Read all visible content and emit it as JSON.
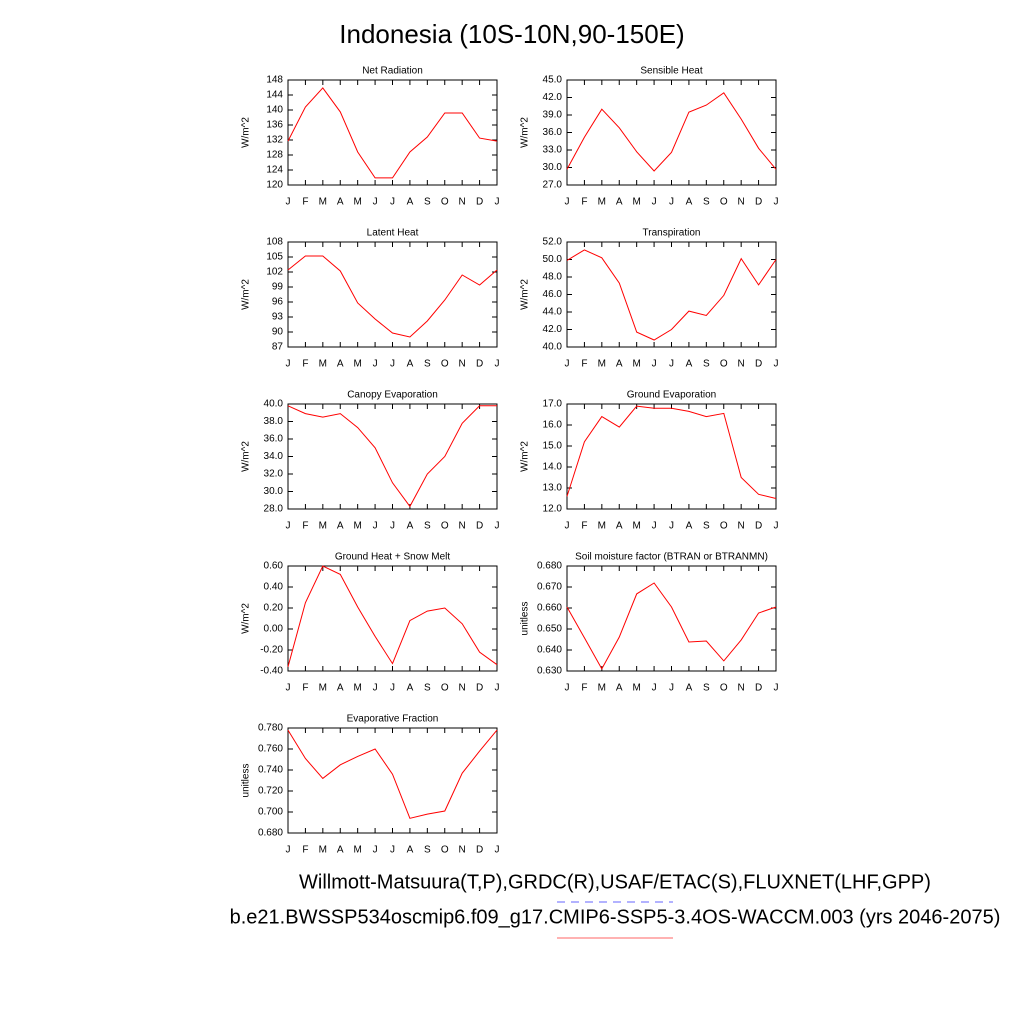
{
  "title": "Indonesia (10S-10N,90-150E)",
  "footer": [
    "Willmott-Matsuura(T,P),GRDC(R),USAF/ETAC(S),FLUXNET(LHF,GPP)",
    "b.e21.BWSSP534oscmip6.f09_g17.CMIP6-SSP5-3.4OS-WACCM.003 (yrs 2046-2075)"
  ],
  "chart_data": [
    {
      "type": "line",
      "title": "Net Radiation",
      "y_label": "W/m^2",
      "color": "#ff0000",
      "categories": [
        "J",
        "F",
        "M",
        "A",
        "M",
        "J",
        "J",
        "A",
        "S",
        "O",
        "N",
        "D",
        "J"
      ],
      "values": [
        131.7,
        140.8,
        145.9,
        139.5,
        128.8,
        121.9,
        121.9,
        128.8,
        132.8,
        139.2,
        139.2,
        132.5,
        131.7
      ],
      "ylim": [
        120,
        148
      ],
      "yticks": [
        120,
        124,
        128,
        132,
        136,
        140,
        144,
        148
      ]
    },
    {
      "type": "line",
      "title": "Sensible Heat",
      "y_label": "W/m^2",
      "color": "#ff0000",
      "categories": [
        "J",
        "F",
        "M",
        "A",
        "M",
        "J",
        "J",
        "A",
        "S",
        "O",
        "N",
        "D",
        "J"
      ],
      "values": [
        29.7,
        35.2,
        40.0,
        36.8,
        32.7,
        29.4,
        32.6,
        39.5,
        40.7,
        42.8,
        38.3,
        33.3,
        29.7
      ],
      "ylim": [
        27,
        45
      ],
      "yticks": [
        {
          "value": 27,
          "label": "27.0"
        },
        {
          "value": 30,
          "label": "30.0"
        },
        {
          "value": 33,
          "label": "33.0"
        },
        {
          "value": 36,
          "label": "36.0"
        },
        {
          "value": 39,
          "label": "39.0"
        },
        {
          "value": 42,
          "label": "42.0"
        },
        {
          "value": 45,
          "label": "45.0"
        }
      ]
    },
    {
      "type": "line",
      "title": "Latent Heat",
      "y_label": "W/m^2",
      "color": "#ff0000",
      "categories": [
        "J",
        "F",
        "M",
        "A",
        "M",
        "J",
        "J",
        "A",
        "S",
        "O",
        "N",
        "D",
        "J"
      ],
      "values": [
        102.4,
        105.2,
        105.2,
        102.2,
        95.8,
        92.6,
        89.8,
        89.0,
        92.2,
        96.4,
        101.4,
        99.4,
        102.4
      ],
      "ylim": [
        87,
        108
      ],
      "yticks": [
        87,
        90,
        93,
        96,
        99,
        102,
        105,
        108
      ]
    },
    {
      "type": "line",
      "title": "Transpiration",
      "y_label": "W/m^2",
      "color": "#ff0000",
      "categories": [
        "J",
        "F",
        "M",
        "A",
        "M",
        "J",
        "J",
        "A",
        "S",
        "O",
        "N",
        "D",
        "J"
      ],
      "values": [
        49.9,
        51.1,
        50.2,
        47.3,
        41.7,
        40.8,
        42.0,
        44.1,
        43.6,
        45.9,
        50.1,
        47.1,
        50.0
      ],
      "ylim": [
        40,
        52
      ],
      "yticks": [
        {
          "value": 40,
          "label": "40.0"
        },
        {
          "value": 42,
          "label": "42.0"
        },
        {
          "value": 44,
          "label": "44.0"
        },
        {
          "value": 46,
          "label": "46.0"
        },
        {
          "value": 48,
          "label": "48.0"
        },
        {
          "value": 50,
          "label": "50.0"
        },
        {
          "value": 52,
          "label": "52.0"
        }
      ]
    },
    {
      "type": "line",
      "title": "Canopy Evaporation",
      "y_label": "W/m^2",
      "color": "#ff0000",
      "categories": [
        "J",
        "F",
        "M",
        "A",
        "M",
        "J",
        "J",
        "A",
        "S",
        "O",
        "N",
        "D",
        "J"
      ],
      "values": [
        39.8,
        38.9,
        38.5,
        38.9,
        37.3,
        35.0,
        31.0,
        28.3,
        32.0,
        34.0,
        37.8,
        39.8,
        39.8
      ],
      "ylim": [
        28,
        40
      ],
      "yticks": [
        {
          "value": 28,
          "label": "28.0"
        },
        {
          "value": 30,
          "label": "30.0"
        },
        {
          "value": 32,
          "label": "32.0"
        },
        {
          "value": 34,
          "label": "34.0"
        },
        {
          "value": 36,
          "label": "36.0"
        },
        {
          "value": 38,
          "label": "38.0"
        },
        {
          "value": 40,
          "label": "40.0"
        }
      ]
    },
    {
      "type": "line",
      "title": "Ground Evaporation",
      "y_label": "W/m^2",
      "color": "#ff0000",
      "categories": [
        "J",
        "F",
        "M",
        "A",
        "M",
        "J",
        "J",
        "A",
        "S",
        "O",
        "N",
        "D",
        "J"
      ],
      "values": [
        12.6,
        15.2,
        16.4,
        15.9,
        16.9,
        16.8,
        16.8,
        16.65,
        16.4,
        16.55,
        13.5,
        12.7,
        12.5
      ],
      "ylim": [
        12,
        17
      ],
      "yticks": [
        {
          "value": 12,
          "label": "12.0"
        },
        {
          "value": 13,
          "label": "13.0"
        },
        {
          "value": 14,
          "label": "14.0"
        },
        {
          "value": 15,
          "label": "15.0"
        },
        {
          "value": 16,
          "label": "16.0"
        },
        {
          "value": 17,
          "label": "17.0"
        }
      ]
    },
    {
      "type": "line",
      "title": "Ground Heat + Snow Melt",
      "y_label": "W/m^2",
      "color": "#ff0000",
      "categories": [
        "J",
        "F",
        "M",
        "A",
        "M",
        "J",
        "J",
        "A",
        "S",
        "O",
        "N",
        "D",
        "J"
      ],
      "values": [
        -0.36,
        0.25,
        0.6,
        0.52,
        0.21,
        -0.07,
        -0.33,
        0.08,
        0.17,
        0.2,
        0.05,
        -0.22,
        -0.34
      ],
      "ylim": [
        -0.4,
        0.6
      ],
      "yticks": [
        {
          "value": -0.4,
          "label": "-0.40"
        },
        {
          "value": -0.2,
          "label": "-0.20"
        },
        {
          "value": 0,
          "label": "0.00"
        },
        {
          "value": 0.2,
          "label": "0.20"
        },
        {
          "value": 0.4,
          "label": "0.40"
        },
        {
          "value": 0.6,
          "label": "0.60"
        }
      ]
    },
    {
      "type": "line",
      "title": "Soil moisture factor (BTRAN or BTRANMN)",
      "y_label": "unitless",
      "color": "#ff0000",
      "categories": [
        "J",
        "F",
        "M",
        "A",
        "M",
        "J",
        "J",
        "A",
        "S",
        "O",
        "N",
        "D",
        "J"
      ],
      "values": [
        0.6605,
        0.6458,
        0.631,
        0.6462,
        0.6667,
        0.6719,
        0.6605,
        0.6438,
        0.6443,
        0.6348,
        0.6448,
        0.6576,
        0.6605
      ],
      "ylim": [
        0.63,
        0.68
      ],
      "yticks": [
        {
          "value": 0.63,
          "label": "0.630"
        },
        {
          "value": 0.64,
          "label": "0.640"
        },
        {
          "value": 0.65,
          "label": "0.650"
        },
        {
          "value": 0.66,
          "label": "0.660"
        },
        {
          "value": 0.67,
          "label": "0.670"
        },
        {
          "value": 0.68,
          "label": "0.680"
        }
      ]
    },
    {
      "type": "line",
      "title": "Evaporative Fraction",
      "y_label": "unitless",
      "color": "#ff0000",
      "categories": [
        "J",
        "F",
        "M",
        "A",
        "M",
        "J",
        "J",
        "A",
        "S",
        "O",
        "N",
        "D",
        "J"
      ],
      "values": [
        0.778,
        0.751,
        0.732,
        0.745,
        0.753,
        0.76,
        0.736,
        0.694,
        0.698,
        0.701,
        0.737,
        0.758,
        0.778
      ],
      "ylim": [
        0.68,
        0.78
      ],
      "yticks": [
        {
          "value": 0.68,
          "label": "0.680"
        },
        {
          "value": 0.7,
          "label": "0.700"
        },
        {
          "value": 0.72,
          "label": "0.720"
        },
        {
          "value": 0.74,
          "label": "0.740"
        },
        {
          "value": 0.76,
          "label": "0.760"
        },
        {
          "value": 0.78,
          "label": "0.780"
        }
      ]
    }
  ]
}
